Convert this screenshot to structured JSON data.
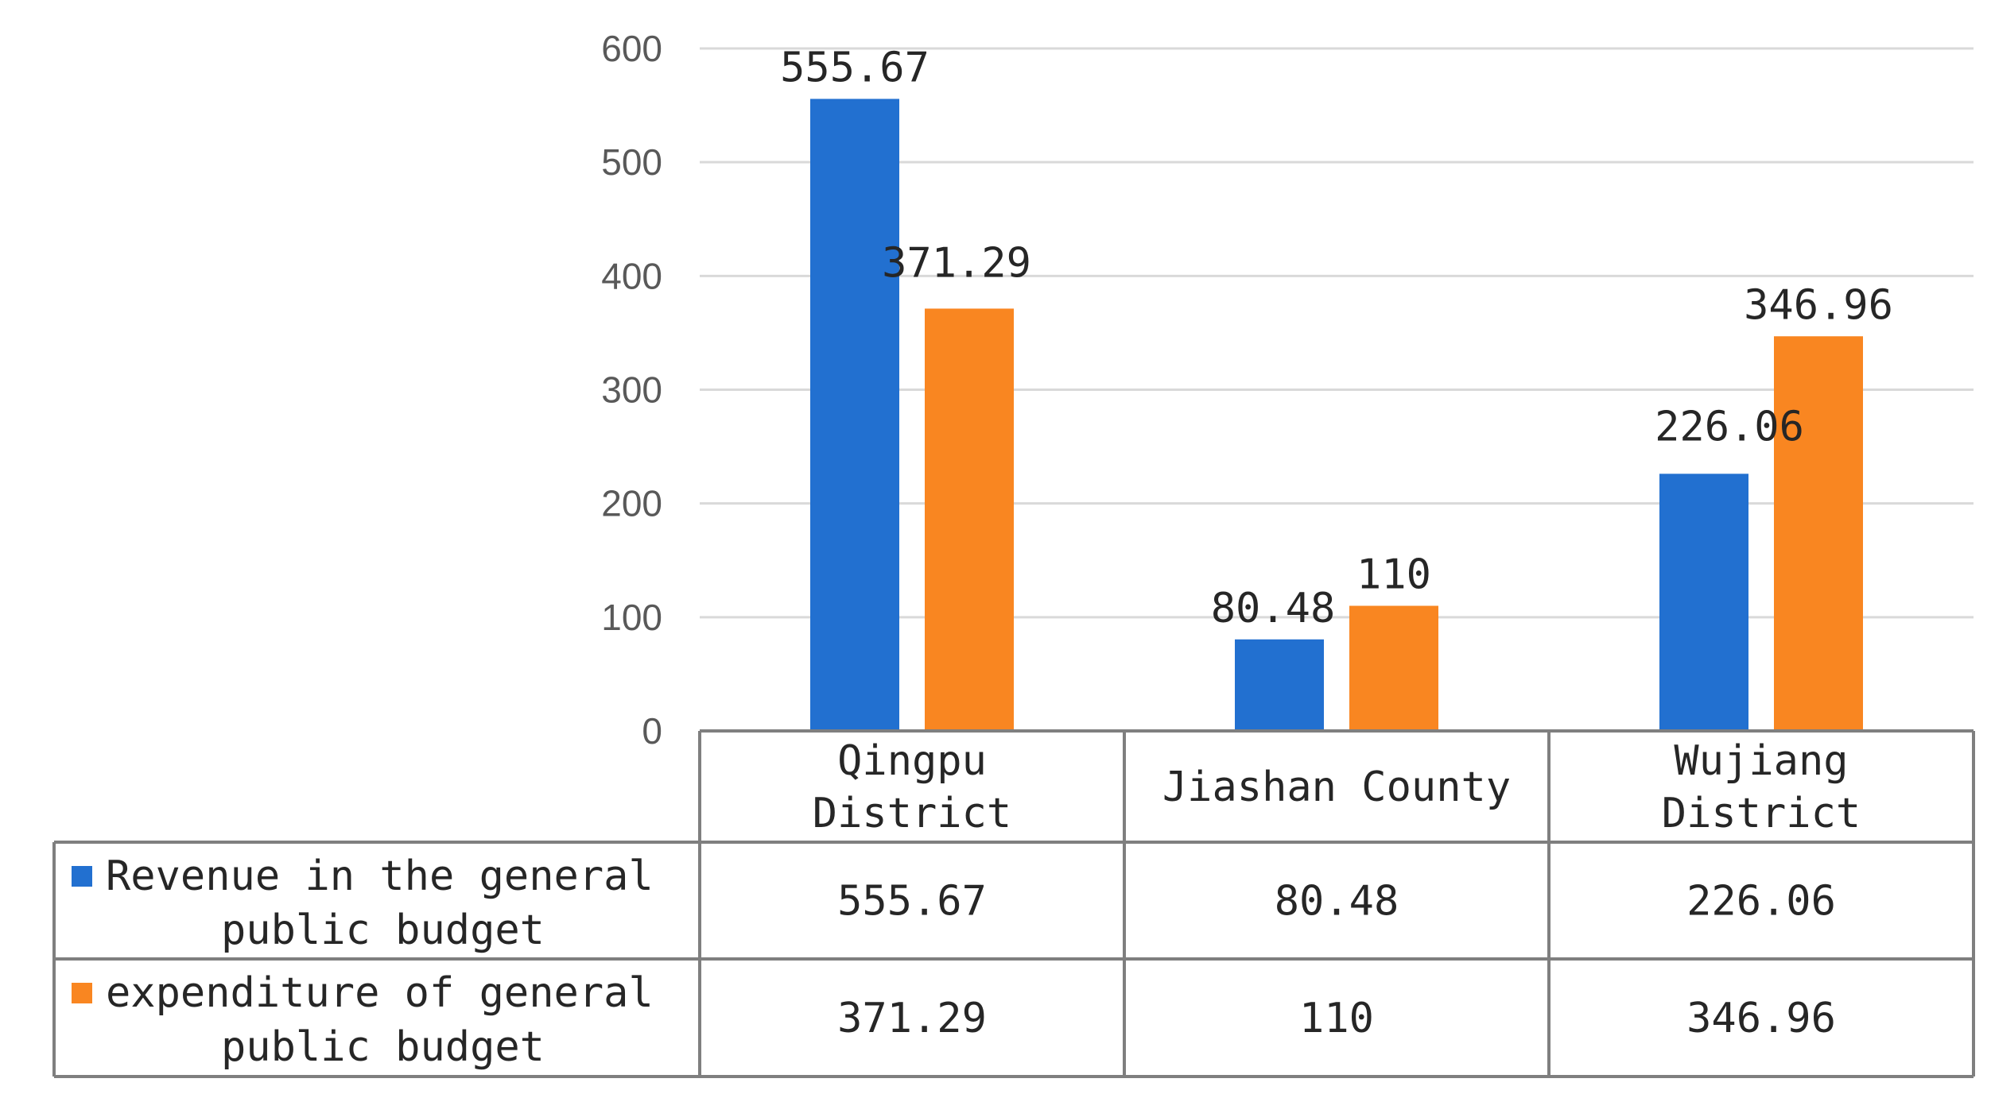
{
  "chart_data": {
    "type": "bar",
    "title": "",
    "xlabel": "",
    "ylabel": "",
    "ylim": [
      0,
      600
    ],
    "yticks": [
      0,
      100,
      200,
      300,
      400,
      500,
      600
    ],
    "grid": true,
    "legend": "data-table",
    "categories": [
      [
        "Qingpu",
        "District"
      ],
      [
        "Jiashan County"
      ],
      [
        "Wujiang",
        "District"
      ]
    ],
    "series": [
      {
        "name": [
          "Revenue in the general",
          "public budget"
        ],
        "color": "#2270d0",
        "values": [
          555.67,
          80.48,
          226.06
        ],
        "labels": [
          "555.67",
          "80.48",
          "226.06"
        ]
      },
      {
        "name": [
          "expenditure of general",
          "public budget"
        ],
        "color": "#f98621",
        "values": [
          371.29,
          110,
          346.96
        ],
        "labels": [
          "371.29",
          "110",
          "346.96"
        ]
      }
    ]
  }
}
